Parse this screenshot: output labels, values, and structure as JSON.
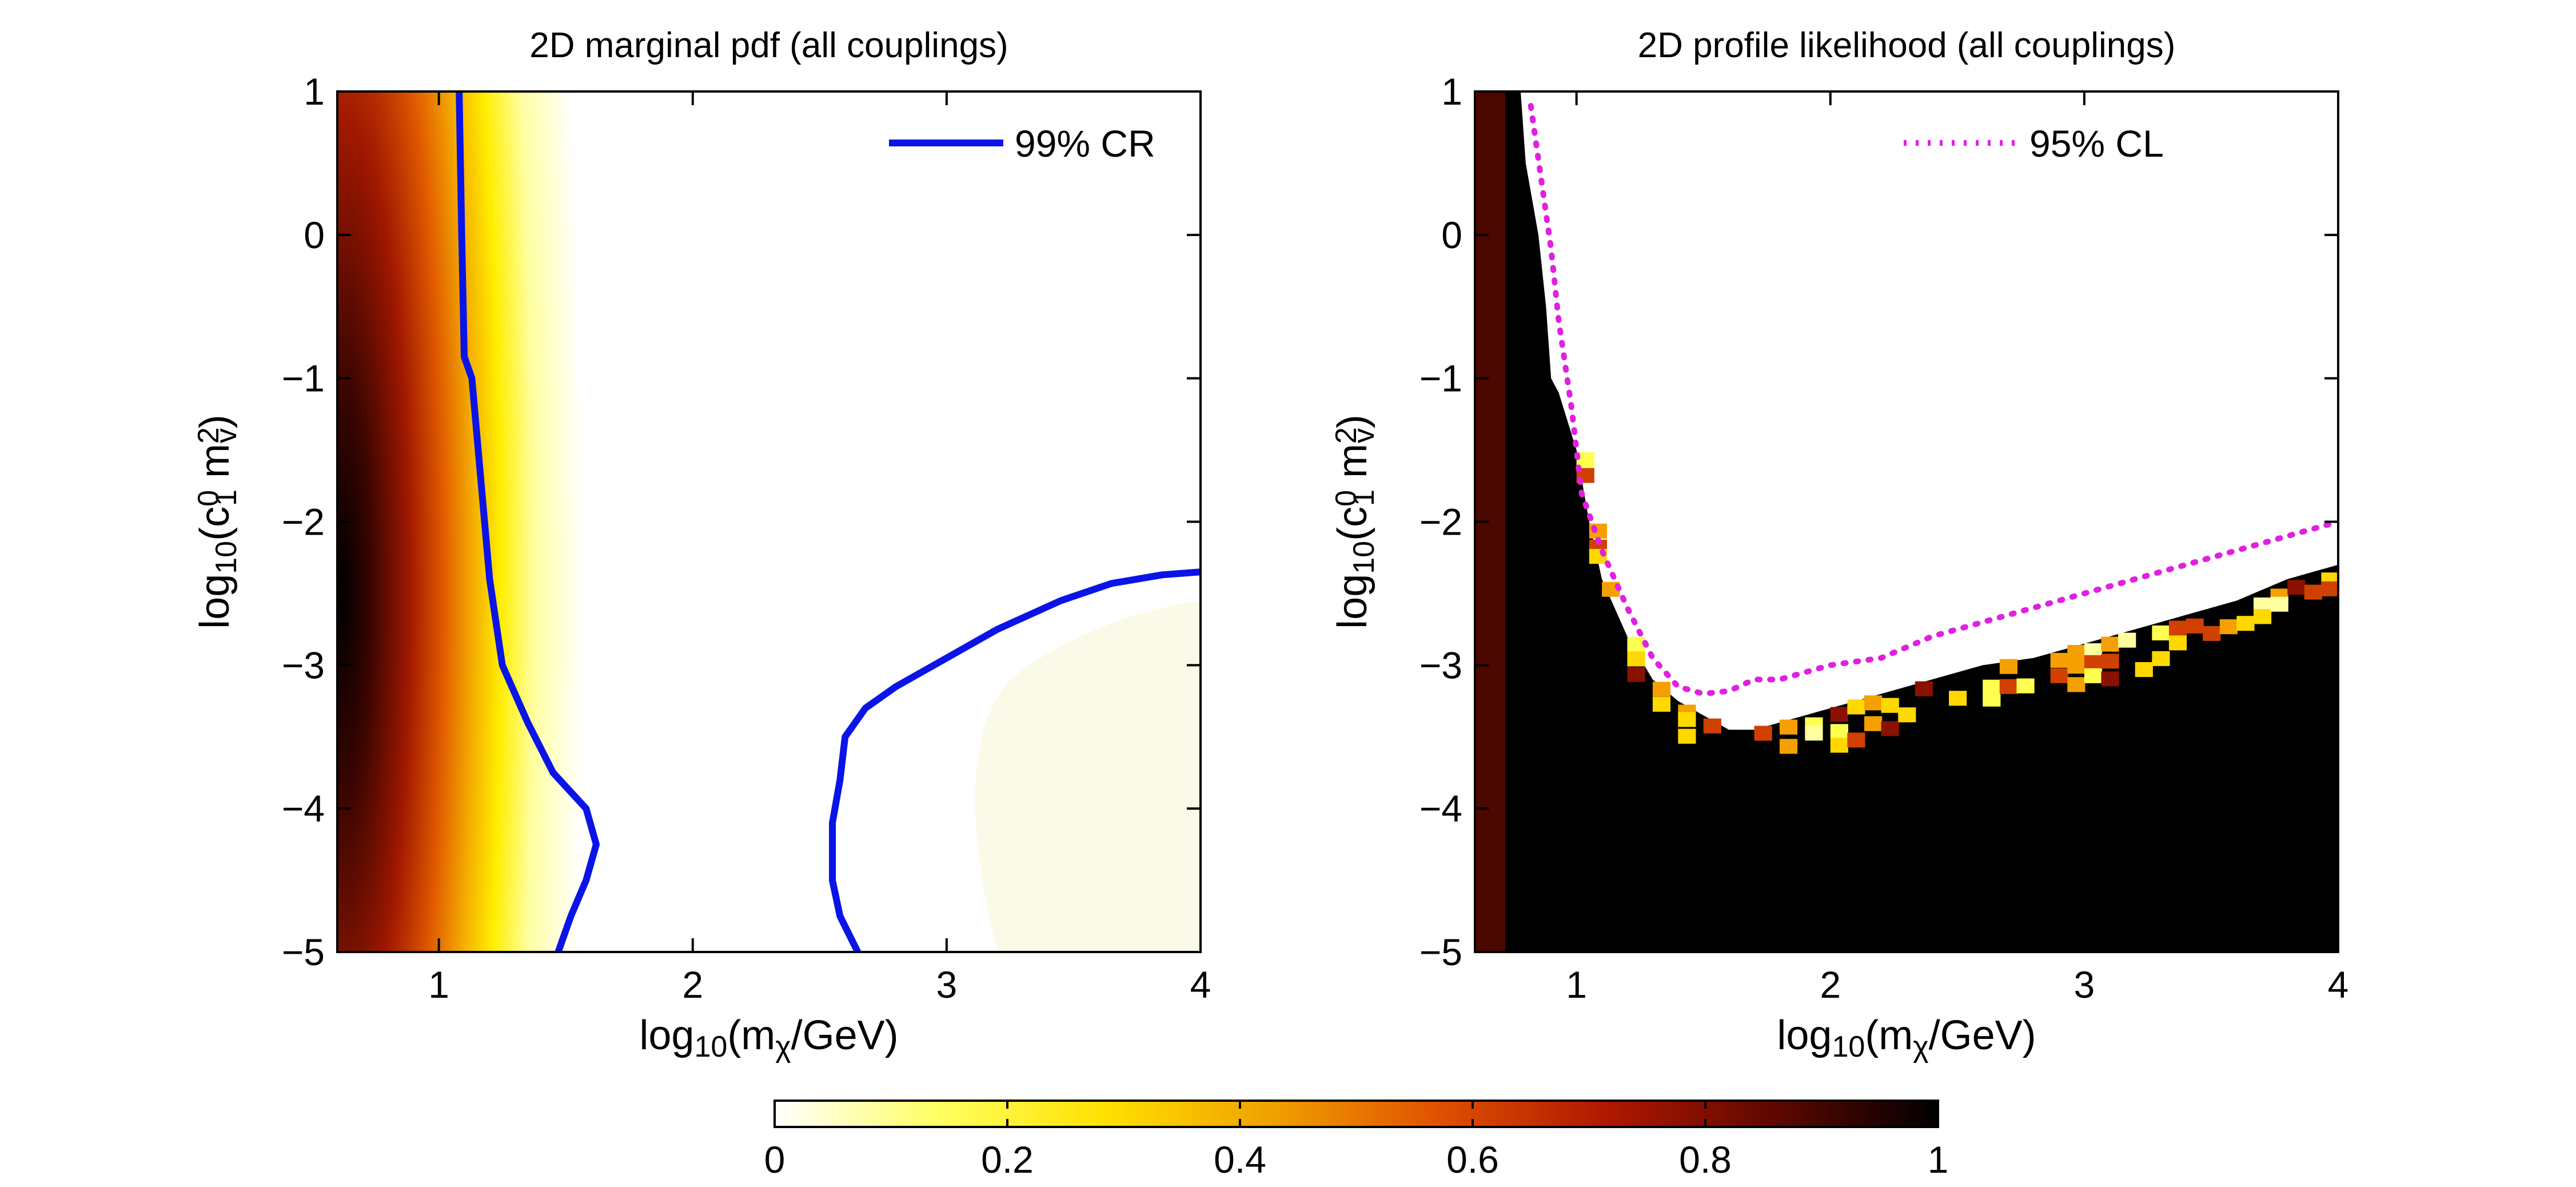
{
  "panels": [
    {
      "title": "2D marginal pdf (all couplings)",
      "xlabel": {
        "base": "log",
        "sub": "10",
        "rest": "(m",
        "sub2": "χ",
        "end": "/GeV)"
      },
      "ylabel": {
        "base": "log",
        "sub": "10",
        "rest": "(c",
        "sup": "0",
        "sub2": "1",
        "mid": " m",
        "sup2": "2",
        "sub3": "v",
        "end": ")"
      },
      "legend": {
        "label": "99% CR",
        "style": "solid",
        "color": "#0a14e6"
      }
    },
    {
      "title": "2D profile likelihood (all couplings)",
      "xlabel": {
        "base": "log",
        "sub": "10",
        "rest": "(m",
        "sub2": "χ",
        "end": "/GeV)"
      },
      "ylabel": {
        "base": "log",
        "sub": "10",
        "rest": "(c",
        "sup": "0",
        "sub2": "1",
        "mid": " m",
        "sup2": "2",
        "sub3": "v",
        "end": ")"
      },
      "legend": {
        "label": "95% CL",
        "style": "dotted",
        "color": "#e020e0"
      }
    }
  ],
  "chart_data": [
    {
      "type": "heatmap",
      "title": "2D marginal pdf (all couplings)",
      "xlabel": "log10(mχ/GeV)",
      "ylabel": "log10(c1^0 mv^2)",
      "xlim": [
        0.6,
        4
      ],
      "ylim": [
        -5,
        1
      ],
      "xticks": [
        "1",
        "2",
        "3",
        "4"
      ],
      "yticks": [
        "1",
        "0",
        "−1",
        "−2",
        "−3",
        "−4",
        "−5"
      ],
      "legend_position": "top-right",
      "density_peak": {
        "x": 0.62,
        "y": -2.5
      },
      "contours": [
        {
          "name": "99% CR",
          "x": [
            1.08,
            1.09,
            1.1,
            1.13,
            1.18,
            1.2,
            1.25,
            1.35,
            1.45,
            1.58,
            1.62,
            1.58,
            1.52,
            1.47
          ],
          "y": [
            1,
            0,
            -0.85,
            -1.0,
            -2.0,
            -2.4,
            -3.0,
            -3.4,
            -3.75,
            -4.0,
            -4.25,
            -4.5,
            -4.75,
            -5
          ]
        },
        {
          "name": "99% CR",
          "x": [
            2.65,
            2.58,
            2.55,
            2.55,
            2.58,
            2.6,
            2.68,
            2.8,
            3.0,
            3.2,
            3.45,
            3.65,
            3.85,
            4.0
          ],
          "y": [
            -5,
            -4.75,
            -4.5,
            -4.1,
            -3.8,
            -3.5,
            -3.3,
            -3.15,
            -2.95,
            -2.75,
            -2.55,
            -2.43,
            -2.37,
            -2.35
          ]
        }
      ]
    },
    {
      "type": "heatmap",
      "title": "2D profile likelihood (all couplings)",
      "xlabel": "log10(mχ/GeV)",
      "ylabel": "log10(c1^0 mv^2)",
      "xlim": [
        0.6,
        4
      ],
      "ylim": [
        -5,
        1
      ],
      "xticks": [
        "1",
        "2",
        "3",
        "4"
      ],
      "yticks": [
        "1",
        "0",
        "−1",
        "−2",
        "−3",
        "−4",
        "−5"
      ],
      "legend_position": "top-right",
      "boundary": {
        "x": [
          0.6,
          0.78,
          0.8,
          0.85,
          0.88,
          0.9,
          0.93,
          1.0,
          1.05,
          1.1,
          1.2,
          1.3,
          1.4,
          1.5,
          1.6,
          1.7,
          1.8,
          1.9,
          2.0,
          2.2,
          2.4,
          2.6,
          2.8,
          3.0,
          3.2,
          3.4,
          3.6,
          3.8,
          4.0
        ],
        "y": [
          1.0,
          1.0,
          0.5,
          0.0,
          -0.5,
          -1.0,
          -1.1,
          -1.5,
          -2.0,
          -2.4,
          -2.8,
          -3.1,
          -3.25,
          -3.35,
          -3.45,
          -3.45,
          -3.4,
          -3.35,
          -3.3,
          -3.2,
          -3.1,
          -3.0,
          -2.95,
          -2.85,
          -2.75,
          -2.65,
          -2.55,
          -2.4,
          -2.3
        ]
      },
      "contours": [
        {
          "name": "95% CL",
          "x": [
            0.82,
            0.86,
            0.9,
            0.93,
            0.98,
            1.02,
            1.1,
            1.2,
            1.3,
            1.4,
            1.5,
            1.6,
            1.7,
            1.8,
            1.9,
            2.0,
            2.2,
            2.4,
            2.6,
            2.8,
            3.0,
            3.2,
            3.4,
            3.6,
            3.8,
            4.0
          ],
          "y": [
            0.9,
            0.4,
            -0.1,
            -0.6,
            -1.2,
            -1.8,
            -2.2,
            -2.6,
            -2.95,
            -3.15,
            -3.2,
            -3.18,
            -3.1,
            -3.1,
            -3.05,
            -3.0,
            -2.95,
            -2.8,
            -2.7,
            -2.6,
            -2.5,
            -2.4,
            -2.3,
            -2.2,
            -2.1,
            -2.0
          ]
        }
      ]
    }
  ],
  "colorbar": {
    "ticks": [
      "0",
      "0.2",
      "0.4",
      "0.6",
      "0.8",
      "1"
    ],
    "stops": [
      "#ffffff",
      "#ffff60",
      "#ffe000",
      "#f0a000",
      "#e05000",
      "#b01800",
      "#600800",
      "#000000"
    ]
  }
}
